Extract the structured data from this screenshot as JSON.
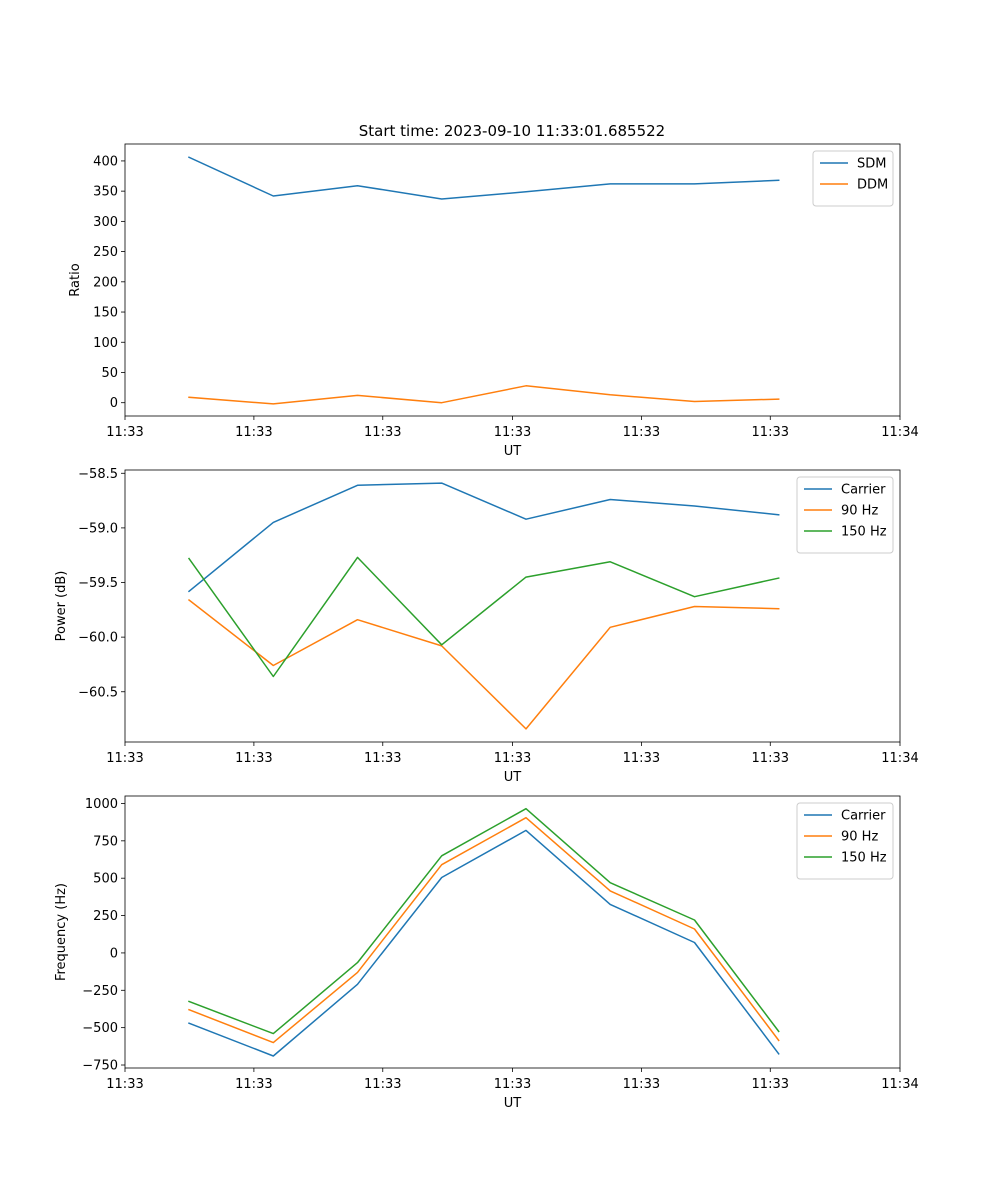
{
  "figure": {
    "title": "Start time: 2023-09-10 11:33:01.685522"
  },
  "chart_data": [
    {
      "type": "line",
      "xlabel": "UT",
      "ylabel": "Ratio",
      "x": [
        0,
        1,
        2,
        3,
        4,
        5,
        6,
        7
      ],
      "xlim": [
        -0.76,
        8.44
      ],
      "x_tick_positions": [
        -0.76,
        0.77,
        2.3,
        3.84,
        5.37,
        6.9,
        8.44
      ],
      "x_tick_labels": [
        "11:33",
        "11:33",
        "11:33",
        "11:33",
        "11:33",
        "11:33",
        "11:34"
      ],
      "ylim": [
        -22,
        428
      ],
      "yticks": [
        0,
        50,
        100,
        150,
        200,
        250,
        300,
        350,
        400
      ],
      "legend_position": "upper-right",
      "series": [
        {
          "name": "SDM",
          "color": "#1f77b4",
          "values": [
            406,
            342,
            359,
            337,
            349,
            362,
            362,
            368
          ]
        },
        {
          "name": "DDM",
          "color": "#ff7f0e",
          "values": [
            9,
            -2,
            12,
            0,
            28,
            13,
            2,
            6
          ]
        }
      ]
    },
    {
      "type": "line",
      "xlabel": "UT",
      "ylabel": "Power (dB)",
      "x": [
        0,
        1,
        2,
        3,
        4,
        5,
        6,
        7
      ],
      "xlim": [
        -0.76,
        8.44
      ],
      "x_tick_positions": [
        -0.76,
        0.77,
        2.3,
        3.84,
        5.37,
        6.9,
        8.44
      ],
      "x_tick_labels": [
        "11:33",
        "11:33",
        "11:33",
        "11:33",
        "11:33",
        "11:33",
        "11:34"
      ],
      "ylim": [
        -60.96,
        -58.47
      ],
      "yticks": [
        -58.5,
        -59.0,
        -59.5,
        -60.0,
        -60.5
      ],
      "ytick_labels": [
        "−58.5",
        "−59.0",
        "−59.5",
        "−60.0",
        "−60.5"
      ],
      "legend_position": "upper-right",
      "series": [
        {
          "name": "Carrier",
          "color": "#1f77b4",
          "values": [
            -59.58,
            -58.95,
            -58.61,
            -58.59,
            -58.92,
            -58.74,
            -58.8,
            -58.88
          ]
        },
        {
          "name": "90 Hz",
          "color": "#ff7f0e",
          "values": [
            -59.66,
            -60.26,
            -59.84,
            -60.08,
            -60.84,
            -59.91,
            -59.72,
            -59.74
          ]
        },
        {
          "name": "150 Hz",
          "color": "#2ca02c",
          "values": [
            -59.28,
            -60.36,
            -59.27,
            -60.07,
            -59.45,
            -59.31,
            -59.63,
            -59.46
          ]
        }
      ]
    },
    {
      "type": "line",
      "xlabel": "UT",
      "ylabel": "Frequency (Hz)",
      "x": [
        0,
        1,
        2,
        3,
        4,
        5,
        6,
        7
      ],
      "xlim": [
        -0.76,
        8.44
      ],
      "x_tick_positions": [
        -0.76,
        0.77,
        2.3,
        3.84,
        5.37,
        6.9,
        8.44
      ],
      "x_tick_labels": [
        "11:33",
        "11:33",
        "11:33",
        "11:33",
        "11:33",
        "11:33",
        "11:34"
      ],
      "ylim": [
        -770,
        1050
      ],
      "yticks": [
        1000,
        750,
        500,
        250,
        0,
        -250,
        -500,
        -750
      ],
      "ytick_labels": [
        "1000",
        "750",
        "500",
        "250",
        "0",
        "−250",
        "−500",
        "−750"
      ],
      "legend_position": "upper-right",
      "series": [
        {
          "name": "Carrier",
          "color": "#1f77b4",
          "values": [
            -470,
            -690,
            -210,
            505,
            820,
            325,
            70,
            -675
          ]
        },
        {
          "name": "90 Hz",
          "color": "#ff7f0e",
          "values": [
            -380,
            -600,
            -130,
            590,
            905,
            415,
            160,
            -585
          ]
        },
        {
          "name": "150 Hz",
          "color": "#2ca02c",
          "values": [
            -325,
            -540,
            -65,
            650,
            965,
            470,
            220,
            -525
          ]
        }
      ]
    }
  ]
}
